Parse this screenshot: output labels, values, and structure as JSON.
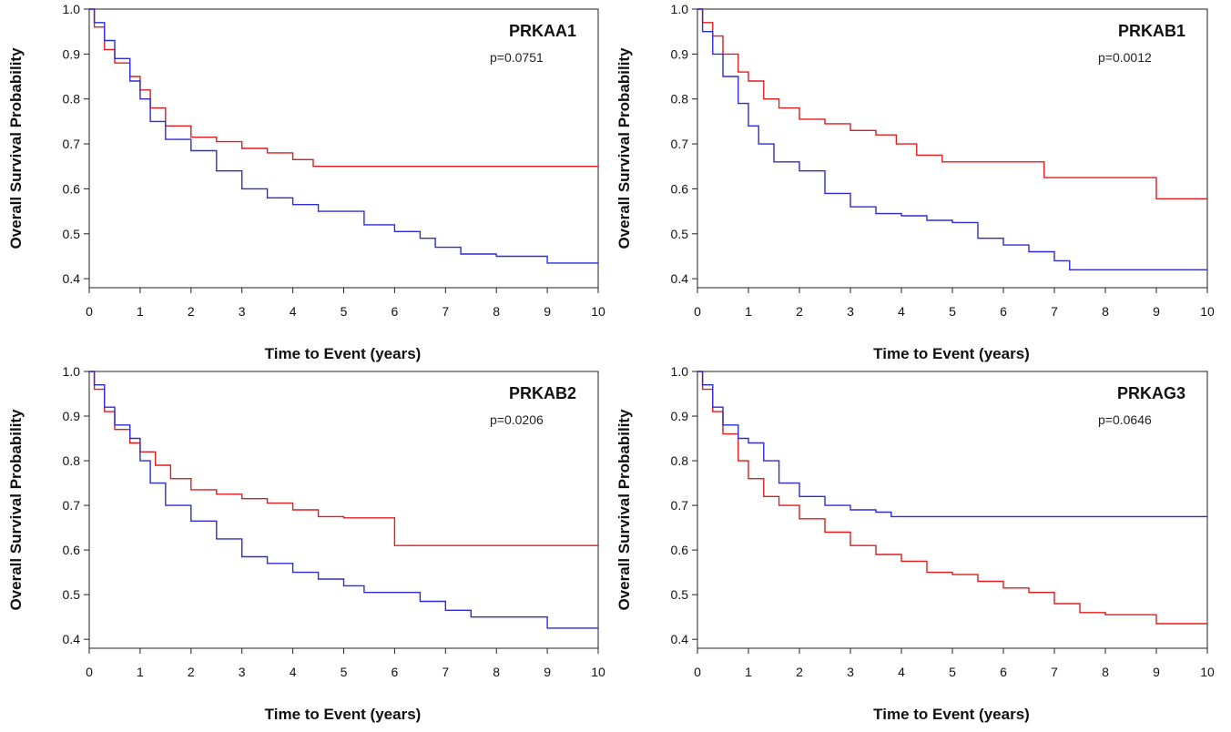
{
  "chart_data": [
    {
      "type": "line",
      "title": "PRKAA1",
      "annotation": "p=0.0751",
      "xlabel": "Time to Event (years)",
      "ylabel": "Overall Survival Probability",
      "xlim": [
        0,
        10
      ],
      "ylim": [
        0.38,
        1.0
      ],
      "x_ticks": [
        "0",
        "1",
        "2",
        "3",
        "4",
        "5",
        "6",
        "7",
        "8",
        "9",
        "10"
      ],
      "y_ticks": [
        "0.4",
        "0.5",
        "0.6",
        "0.7",
        "0.8",
        "0.9",
        "1.0"
      ],
      "grid": false,
      "legend": "none",
      "series": [
        {
          "color": "#e41a1c",
          "x": [
            0,
            0.1,
            0.3,
            0.5,
            0.8,
            1.0,
            1.2,
            1.5,
            2.0,
            2.5,
            3.0,
            3.5,
            4.0,
            4.4,
            5.0,
            7.0,
            10.0
          ],
          "y": [
            1.0,
            0.96,
            0.91,
            0.88,
            0.85,
            0.82,
            0.78,
            0.74,
            0.715,
            0.705,
            0.69,
            0.68,
            0.665,
            0.65,
            0.65,
            0.65,
            0.65
          ]
        },
        {
          "color": "#2b2bdc",
          "x": [
            0,
            0.1,
            0.3,
            0.5,
            0.8,
            1.0,
            1.2,
            1.5,
            2.0,
            2.5,
            3.0,
            3.5,
            4.0,
            4.5,
            5.0,
            5.4,
            6.0,
            6.5,
            6.8,
            7.3,
            8.0,
            9.0,
            10.0
          ],
          "y": [
            1.0,
            0.97,
            0.93,
            0.89,
            0.84,
            0.8,
            0.75,
            0.71,
            0.685,
            0.64,
            0.6,
            0.58,
            0.565,
            0.55,
            0.55,
            0.52,
            0.505,
            0.49,
            0.47,
            0.455,
            0.45,
            0.435,
            0.435
          ]
        }
      ]
    },
    {
      "type": "line",
      "title": "PRKAB1",
      "annotation": "p=0.0012",
      "xlabel": "Time to Event (years)",
      "ylabel": "Overall Survival Probability",
      "xlim": [
        0,
        10
      ],
      "ylim": [
        0.38,
        1.0
      ],
      "x_ticks": [
        "0",
        "1",
        "2",
        "3",
        "4",
        "5",
        "6",
        "7",
        "8",
        "9",
        "10"
      ],
      "y_ticks": [
        "0.4",
        "0.5",
        "0.6",
        "0.7",
        "0.8",
        "0.9",
        "1.0"
      ],
      "grid": false,
      "legend": "none",
      "series": [
        {
          "color": "#e41a1c",
          "x": [
            0,
            0.1,
            0.3,
            0.5,
            0.8,
            1.0,
            1.3,
            1.6,
            2.0,
            2.5,
            3.0,
            3.5,
            3.9,
            4.3,
            4.8,
            5.5,
            6.8,
            9.0,
            10.0
          ],
          "y": [
            1.0,
            0.97,
            0.94,
            0.9,
            0.86,
            0.84,
            0.8,
            0.78,
            0.755,
            0.745,
            0.73,
            0.72,
            0.7,
            0.675,
            0.66,
            0.66,
            0.625,
            0.578,
            0.578
          ]
        },
        {
          "color": "#2b2bdc",
          "x": [
            0,
            0.1,
            0.3,
            0.5,
            0.8,
            1.0,
            1.2,
            1.5,
            2.0,
            2.5,
            3.0,
            3.5,
            4.0,
            4.5,
            5.0,
            5.5,
            6.0,
            6.5,
            7.0,
            7.3,
            8.0,
            10.0
          ],
          "y": [
            1.0,
            0.95,
            0.9,
            0.85,
            0.79,
            0.74,
            0.7,
            0.66,
            0.64,
            0.59,
            0.56,
            0.545,
            0.54,
            0.53,
            0.525,
            0.49,
            0.475,
            0.46,
            0.44,
            0.42,
            0.42,
            0.42
          ]
        }
      ]
    },
    {
      "type": "line",
      "title": "PRKAB2",
      "annotation": "p=0.0206",
      "xlabel": "Time to Event (years)",
      "ylabel": "Overall Survival Probability",
      "xlim": [
        0,
        10
      ],
      "ylim": [
        0.38,
        1.0
      ],
      "x_ticks": [
        "0",
        "1",
        "2",
        "3",
        "4",
        "5",
        "6",
        "7",
        "8",
        "9",
        "10"
      ],
      "y_ticks": [
        "0.4",
        "0.5",
        "0.6",
        "0.7",
        "0.8",
        "0.9",
        "1.0"
      ],
      "grid": false,
      "legend": "none",
      "series": [
        {
          "color": "#e41a1c",
          "x": [
            0,
            0.1,
            0.3,
            0.5,
            0.8,
            1.0,
            1.3,
            1.6,
            2.0,
            2.5,
            3.0,
            3.5,
            4.0,
            4.5,
            5.0,
            5.5,
            6.0,
            7.0,
            10.0
          ],
          "y": [
            1.0,
            0.96,
            0.91,
            0.87,
            0.84,
            0.82,
            0.79,
            0.76,
            0.735,
            0.725,
            0.715,
            0.705,
            0.69,
            0.675,
            0.672,
            0.672,
            0.61,
            0.61,
            0.61
          ]
        },
        {
          "color": "#2b2bdc",
          "x": [
            0,
            0.1,
            0.3,
            0.5,
            0.8,
            1.0,
            1.2,
            1.5,
            2.0,
            2.5,
            3.0,
            3.5,
            4.0,
            4.5,
            5.0,
            5.4,
            6.0,
            6.5,
            7.0,
            7.5,
            8.0,
            9.0,
            10.0
          ],
          "y": [
            1.0,
            0.97,
            0.92,
            0.88,
            0.85,
            0.8,
            0.75,
            0.7,
            0.665,
            0.625,
            0.585,
            0.57,
            0.55,
            0.535,
            0.52,
            0.505,
            0.505,
            0.485,
            0.465,
            0.45,
            0.45,
            0.425,
            0.425
          ]
        }
      ]
    },
    {
      "type": "line",
      "title": "PRKAG3",
      "annotation": "p=0.0646",
      "xlabel": "Time to Event (years)",
      "ylabel": "Overall Survival Probability",
      "xlim": [
        0,
        10
      ],
      "ylim": [
        0.38,
        1.0
      ],
      "x_ticks": [
        "0",
        "1",
        "2",
        "3",
        "4",
        "5",
        "6",
        "7",
        "8",
        "9",
        "10"
      ],
      "y_ticks": [
        "0.4",
        "0.5",
        "0.6",
        "0.7",
        "0.8",
        "0.9",
        "1.0"
      ],
      "grid": false,
      "legend": "none",
      "series": [
        {
          "color": "#e41a1c",
          "x": [
            0,
            0.1,
            0.3,
            0.5,
            0.8,
            1.0,
            1.3,
            1.6,
            2.0,
            2.5,
            3.0,
            3.5,
            4.0,
            4.5,
            5.0,
            5.5,
            6.0,
            6.5,
            7.0,
            7.5,
            8.0,
            9.0,
            10.0
          ],
          "y": [
            1.0,
            0.96,
            0.91,
            0.86,
            0.8,
            0.76,
            0.72,
            0.7,
            0.67,
            0.64,
            0.61,
            0.59,
            0.575,
            0.55,
            0.545,
            0.53,
            0.515,
            0.505,
            0.48,
            0.46,
            0.455,
            0.435,
            0.435
          ]
        },
        {
          "color": "#2b2bdc",
          "x": [
            0,
            0.1,
            0.3,
            0.5,
            0.8,
            1.0,
            1.3,
            1.6,
            2.0,
            2.5,
            3.0,
            3.5,
            3.8,
            5.0,
            10.0
          ],
          "y": [
            1.0,
            0.97,
            0.92,
            0.88,
            0.85,
            0.84,
            0.8,
            0.75,
            0.72,
            0.7,
            0.69,
            0.685,
            0.675,
            0.675,
            0.675
          ]
        }
      ]
    }
  ]
}
